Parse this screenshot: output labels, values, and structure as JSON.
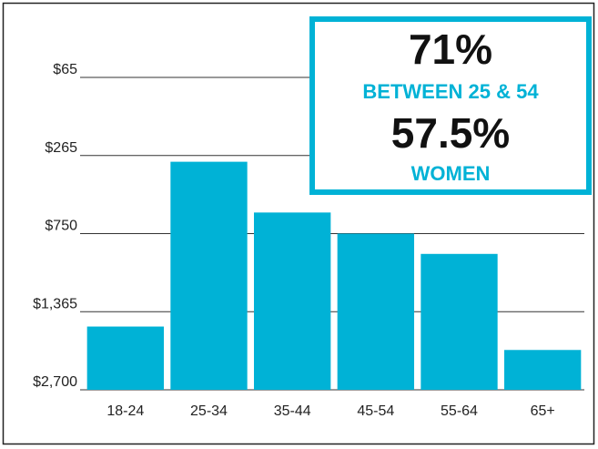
{
  "chart_data": {
    "type": "bar",
    "categories": [
      "18-24",
      "25-34",
      "35-44",
      "45-54",
      "55-64",
      "65+"
    ],
    "values": [
      0.81,
      2.92,
      2.27,
      2.0,
      1.74,
      0.51
    ],
    "color": "#00b2d6",
    "ylim": [
      0,
      4
    ],
    "yticks": [
      {
        "value": 0,
        "label": "$2,700"
      },
      {
        "value": 1,
        "label": "$1,365"
      },
      {
        "value": 2,
        "label": "$750"
      },
      {
        "value": 3,
        "label": "$265"
      },
      {
        "value": 4,
        "label": "$65"
      }
    ],
    "grid": true,
    "callout": {
      "stat1": "71%",
      "label1": "BETWEEN 25 & 54",
      "stat2": "57.5%",
      "label2": "WOMEN"
    }
  }
}
